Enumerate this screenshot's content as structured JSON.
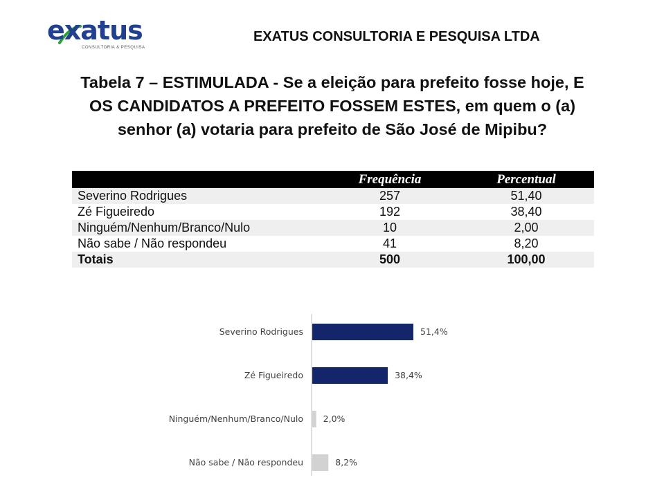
{
  "header": {
    "logo_text": "exatus",
    "logo_subtext": "CONSULTORIA & PESQUISA",
    "company": "EXATUS CONSULTORIA E PESQUISA LTDA"
  },
  "title": "Tabela 7 – ESTIMULADA - Se a eleição para prefeito fosse hoje, E OS CANDIDATOS A PREFEITO FOSSEM ESTES, em quem o (a) senhor (a) votaria para prefeito de São José de Mipibu?",
  "table": {
    "headers": [
      "",
      "Frequência",
      "Percentual"
    ],
    "rows": [
      {
        "label": "Severino Rodrigues",
        "freq": "257",
        "pct": "51,40"
      },
      {
        "label": "Zé Figueiredo",
        "freq": "192",
        "pct": "38,40"
      },
      {
        "label": "Ninguém/Nenhum/Branco/Nulo",
        "freq": "10",
        "pct": "2,00"
      },
      {
        "label": "Não sabe / Não respondeu",
        "freq": "41",
        "pct": "8,20"
      }
    ],
    "total": {
      "label": "Totais",
      "freq": "500",
      "pct": "100,00"
    }
  },
  "colors": {
    "highlight_bar": "#14266a",
    "other_bar": "#d2d2d2"
  },
  "chart_data": {
    "type": "bar",
    "orientation": "horizontal",
    "categories": [
      "Severino Rodrigues",
      "Zé Figueiredo",
      "Ninguém/Nenhum/Branco/Nulo",
      "Não sabe / Não respondeu"
    ],
    "values": [
      51.4,
      38.4,
      2.0,
      8.2
    ],
    "data_labels": [
      "51,4%",
      "38,4%",
      "2,0%",
      "8,2%"
    ],
    "bar_colors": [
      "#14266a",
      "#14266a",
      "#d2d2d2",
      "#d2d2d2"
    ],
    "xlim": [
      0,
      100
    ],
    "grid": false,
    "legend": "none"
  }
}
